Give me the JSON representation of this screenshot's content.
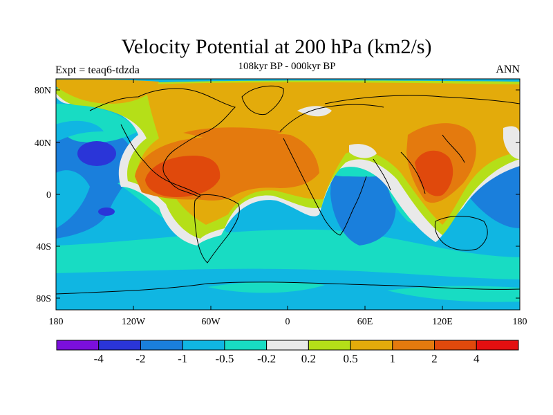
{
  "plot": {
    "title": "Velocity Potential at 200 hPa (km2/s)",
    "subtitle": "108kyr BP - 000kyr BP",
    "left_label": "Expt = teaq6-tdzda",
    "right_label": "ANN"
  },
  "axes": {
    "lat_ticks": [
      "80N",
      "40N",
      "0",
      "40S",
      "80S"
    ],
    "lon_ticks": [
      "180",
      "120W",
      "60W",
      "0",
      "60E",
      "120E",
      "180"
    ]
  },
  "colorbar": {
    "colors": [
      "#7b0fdc",
      "#2a35d8",
      "#1a7fdc",
      "#10b6e2",
      "#18dcc3",
      "#e9e9e9",
      "#b5df18",
      "#e3ab0b",
      "#e47a0e",
      "#e0490c",
      "#e40f10"
    ],
    "labels": [
      "-4",
      "-2",
      "-1",
      "-0.5",
      "-0.2",
      "0.2",
      "0.5",
      "1",
      "2",
      "4"
    ]
  },
  "map_colors": {
    "strong_neg": "#2a35d8",
    "neg": "#1a7fdc",
    "weak_neg": "#10b6e2",
    "near_neg": "#18dcc3",
    "zero": "#e9e9e9",
    "near_pos": "#b5df18",
    "weak_pos": "#e3ab0b",
    "pos": "#e47a0e",
    "strong_pos": "#e0490c"
  }
}
